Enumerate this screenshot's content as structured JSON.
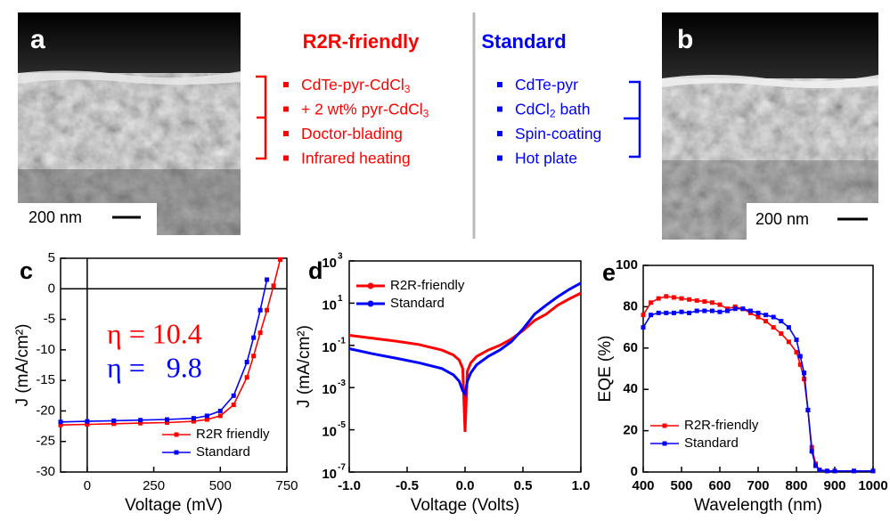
{
  "panels": {
    "a": {
      "label": "a",
      "scale_bar": "200 nm"
    },
    "b": {
      "label": "b",
      "scale_bar": "200 nm"
    },
    "r2r": {
      "title": "R2R-friendly",
      "items": [
        [
          "CdTe-pyr-CdCl",
          "3"
        ],
        [
          "+ 2 wt% pyr-CdCl",
          "3"
        ],
        [
          "Doctor-blading"
        ],
        [
          "Infrared heating"
        ]
      ]
    },
    "standard": {
      "title": "Standard",
      "items": [
        [
          "CdTe-pyr"
        ],
        [
          "CdCl",
          "2",
          " bath"
        ],
        [
          "Spin-coating"
        ],
        [
          "Hot plate"
        ]
      ]
    }
  },
  "chart_data": [
    {
      "type": "line",
      "panel_label": "c",
      "xlabel": "Voltage (mV)",
      "ylabel": "J (mA/cm²)",
      "x": [
        -100,
        0,
        100,
        200,
        300,
        400,
        450,
        500,
        550,
        600,
        625,
        650,
        675,
        700,
        725
      ],
      "series": [
        {
          "name": "R2R friendly",
          "color": "#ff0000",
          "values": [
            -22.3,
            -22.2,
            -22.1,
            -22.0,
            -21.9,
            -21.7,
            -21.4,
            -20.8,
            -19.0,
            -14.5,
            -11.0,
            -7.2,
            -3.5,
            0.5,
            4.8
          ]
        },
        {
          "name": "Standard",
          "color": "#0000ff",
          "values": [
            -21.8,
            -21.7,
            -21.6,
            -21.5,
            -21.4,
            -21.2,
            -20.8,
            -20.0,
            -17.5,
            -12.0,
            -8.0,
            -3.5,
            1.5,
            null,
            null
          ]
        }
      ],
      "xlim": [
        -100,
        750
      ],
      "ylim": [
        -30,
        5
      ],
      "xticks": [
        0,
        250,
        500,
        750
      ],
      "yticks": [
        5,
        0,
        -5,
        -10,
        -15,
        -20,
        -25,
        -30
      ],
      "zero_axes": true,
      "markers": true,
      "legend": "lower right",
      "annotations": [
        {
          "text": "η = 10.4",
          "color": "#ff0000"
        },
        {
          "text": "η =   9.8",
          "color": "#0000ff"
        }
      ]
    },
    {
      "type": "line",
      "panel_label": "d",
      "xlabel": "Voltage (Volts)",
      "ylabel": "J (mA/cm²)",
      "x": [
        -1,
        -0.8,
        -0.6,
        -0.4,
        -0.2,
        -0.1,
        -0.05,
        -0.02,
        0,
        0.02,
        0.05,
        0.1,
        0.2,
        0.3,
        0.4,
        0.5,
        0.6,
        0.7,
        0.8,
        0.9,
        1.0
      ],
      "series": [
        {
          "name": "R2R-friendly",
          "color": "#ff0000",
          "values": [
            0.3,
            0.22,
            0.16,
            0.11,
            0.06,
            0.035,
            0.02,
            0.008,
            8e-06,
            0.006,
            0.015,
            0.03,
            0.06,
            0.1,
            0.2,
            0.5,
            1.5,
            3,
            8,
            16,
            30
          ]
        },
        {
          "name": "Standard",
          "color": "#0000ff",
          "values": [
            0.07,
            0.04,
            0.025,
            0.015,
            0.008,
            0.004,
            0.002,
            0.0007,
            0.0005,
            0.002,
            0.005,
            0.012,
            0.03,
            0.06,
            0.15,
            0.6,
            3,
            8,
            20,
            45,
            90
          ]
        }
      ],
      "xlim": [
        -1,
        1
      ],
      "ylim": [
        1e-07,
        1000
      ],
      "yscale": "log",
      "xticks": [
        {
          "value": -1,
          "label": "-1.0"
        },
        {
          "value": -0.5,
          "label": "-0.5"
        },
        {
          "value": 0,
          "label": "0.0"
        },
        {
          "value": 0.5,
          "label": "0.5"
        },
        {
          "value": 1,
          "label": "1.0"
        }
      ],
      "yticks": [
        {
          "value": 1e-07,
          "label": "10",
          "exponent": "-7"
        },
        {
          "value": 1e-05,
          "label": "10",
          "exponent": "-5"
        },
        {
          "value": 0.001,
          "label": "10",
          "exponent": "-3"
        },
        {
          "value": 0.1,
          "label": "10",
          "exponent": "-1"
        },
        {
          "value": 10,
          "label": "10",
          "exponent": "1"
        },
        {
          "value": 1000,
          "label": "10",
          "exponent": "3"
        }
      ],
      "markers": false,
      "legend": "upper left"
    },
    {
      "type": "line",
      "panel_label": "e",
      "xlabel": "Wavelength (nm)",
      "ylabel": "EQE (%)",
      "x": [
        400,
        420,
        440,
        460,
        480,
        500,
        520,
        540,
        560,
        580,
        600,
        620,
        640,
        660,
        680,
        700,
        720,
        740,
        760,
        780,
        800,
        810,
        820,
        830,
        840,
        850,
        860,
        880,
        900,
        950,
        1000
      ],
      "series": [
        {
          "name": "R2R-friendly",
          "color": "#ff0000",
          "values": [
            76,
            82,
            84,
            85,
            84.5,
            84,
            83.5,
            83,
            82.5,
            82,
            81,
            79,
            80,
            79,
            77,
            75,
            73,
            70,
            67,
            63,
            58,
            52,
            45,
            30,
            12,
            4,
            1,
            0.5,
            0.5,
            0.5,
            0.5
          ]
        },
        {
          "name": "Standard",
          "color": "#0000ff",
          "values": [
            70,
            76,
            77,
            77,
            77,
            77.5,
            77,
            78,
            78,
            78,
            77.5,
            78,
            79,
            79,
            78,
            77,
            76,
            75,
            73,
            70,
            64,
            56,
            48,
            30,
            10,
            3,
            1,
            0.5,
            0.5,
            0.5,
            0.5
          ]
        }
      ],
      "xlim": [
        400,
        1000
      ],
      "ylim": [
        0,
        100
      ],
      "xticks": [
        400,
        500,
        600,
        700,
        800,
        900,
        1000
      ],
      "yticks": [
        0,
        20,
        40,
        60,
        80,
        100
      ],
      "markers": true,
      "legend": "lower left"
    }
  ]
}
